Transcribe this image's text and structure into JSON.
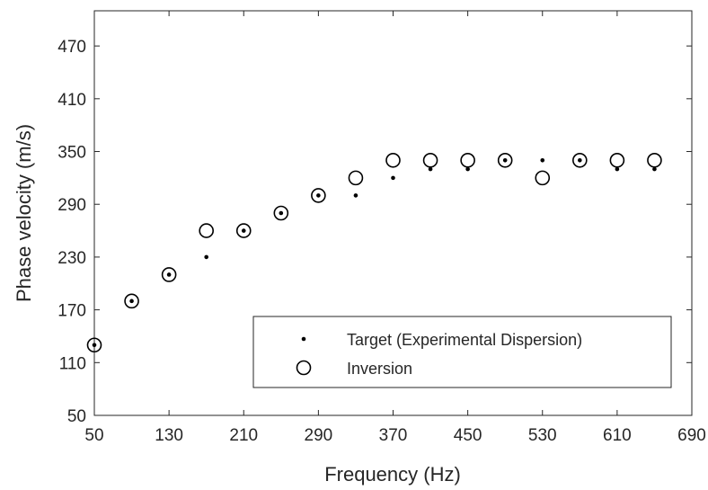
{
  "chart_data": {
    "type": "scatter",
    "title": "",
    "xlabel": "Frequency (Hz)",
    "ylabel": "Phase velocity (m/s)",
    "xlim": [
      50,
      690
    ],
    "ylim": [
      50,
      510
    ],
    "xticks": [
      50,
      130,
      210,
      290,
      370,
      450,
      530,
      610,
      690
    ],
    "yticks": [
      50,
      110,
      170,
      230,
      290,
      350,
      410,
      470
    ],
    "grid": false,
    "legend_position": "bottom-right",
    "series": [
      {
        "name": "Target (Experimental Dispersion)",
        "marker": "dot",
        "x": [
          50,
          90,
          130,
          170,
          210,
          250,
          290,
          330,
          370,
          410,
          450,
          490,
          530,
          570,
          610,
          650
        ],
        "y": [
          130,
          180,
          210,
          230,
          260,
          280,
          300,
          300,
          320,
          330,
          330,
          340,
          340,
          340,
          330,
          330
        ]
      },
      {
        "name": "Inversion",
        "marker": "open-circle",
        "x": [
          50,
          90,
          130,
          170,
          210,
          250,
          290,
          330,
          370,
          410,
          450,
          490,
          530,
          570,
          610,
          650
        ],
        "y": [
          130,
          180,
          210,
          260,
          260,
          280,
          300,
          320,
          340,
          340,
          340,
          340,
          320,
          340,
          340,
          340
        ]
      }
    ],
    "colors": {
      "marker": "#000000",
      "axis": "#262626"
    }
  }
}
